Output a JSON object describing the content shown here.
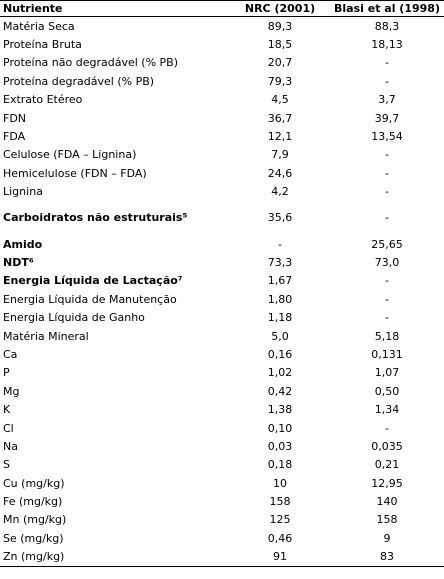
{
  "table": {
    "header": [
      "Nutriente",
      "NRC (2001)",
      "Blasi et al (1998)"
    ],
    "rows": [
      {
        "cells": [
          "Matéria Seca",
          "89,3",
          "88,3"
        ]
      },
      {
        "cells": [
          "Proteína Bruta",
          "18,5",
          "18,13"
        ]
      },
      {
        "cells": [
          "Proteína não degradável (% PB)",
          "20,7",
          "-"
        ]
      },
      {
        "cells": [
          "Proteína degradável (% PB)",
          "79,3",
          "-"
        ]
      },
      {
        "cells": [
          "Extrato Etéreo",
          "4,5",
          "3,7"
        ]
      },
      {
        "cells": [
          "FDN",
          "36,7",
          "39,7"
        ]
      },
      {
        "cells": [
          "FDA",
          "12,1",
          "13,54"
        ]
      },
      {
        "cells": [
          "Celulose (FDA – Lignina)",
          "7,9",
          "-"
        ]
      },
      {
        "cells": [
          "Hemicelulose  (FDN – FDA)",
          "24,6",
          "-"
        ]
      },
      {
        "cells": [
          "Lignina",
          "4,2",
          "-"
        ]
      },
      {
        "cells": [
          "Carboidratos não estruturais⁵",
          "35,6",
          "-"
        ],
        "bold": true,
        "justify": true
      },
      {
        "cells": [
          "Amido",
          "-",
          "25,65"
        ],
        "bold": true
      },
      {
        "cells": [
          "NDT⁶",
          "73,3",
          "73,0"
        ],
        "bold": true
      },
      {
        "cells": [
          "Energia Líquida de  Lactação⁷",
          "1,67",
          "-"
        ],
        "bold": true
      },
      {
        "cells": [
          "Energia Líquida de Manutenção",
          "1,80",
          "-"
        ]
      },
      {
        "cells": [
          "Energia Líquida de Ganho",
          "1,18",
          "-"
        ]
      },
      {
        "cells": [
          "Matéria Mineral",
          "5,0",
          "5,18"
        ]
      },
      {
        "cells": [
          "Ca",
          "0,16",
          "0,131"
        ]
      },
      {
        "cells": [
          "P",
          "1,02",
          "1,07"
        ]
      },
      {
        "cells": [
          "Mg",
          "0,42",
          "0,50"
        ]
      },
      {
        "cells": [
          "K",
          "1,38",
          "1,34"
        ]
      },
      {
        "cells": [
          "Cl",
          "0,10",
          "-"
        ]
      },
      {
        "cells": [
          "Na",
          "0,03",
          "0,035"
        ]
      },
      {
        "cells": [
          "S",
          "0,18",
          "0,21"
        ]
      },
      {
        "cells": [
          "Cu (mg/kg)",
          "10",
          "12,95"
        ]
      },
      {
        "cells": [
          "Fe (mg/kg)",
          "158",
          "140"
        ]
      },
      {
        "cells": [
          "Mn (mg/kg)",
          "125",
          "158"
        ]
      },
      {
        "cells": [
          "Se (mg/kg)",
          "0,46",
          "9"
        ]
      },
      {
        "cells": [
          "Zn (mg/kg)",
          "91",
          "83"
        ]
      }
    ]
  }
}
